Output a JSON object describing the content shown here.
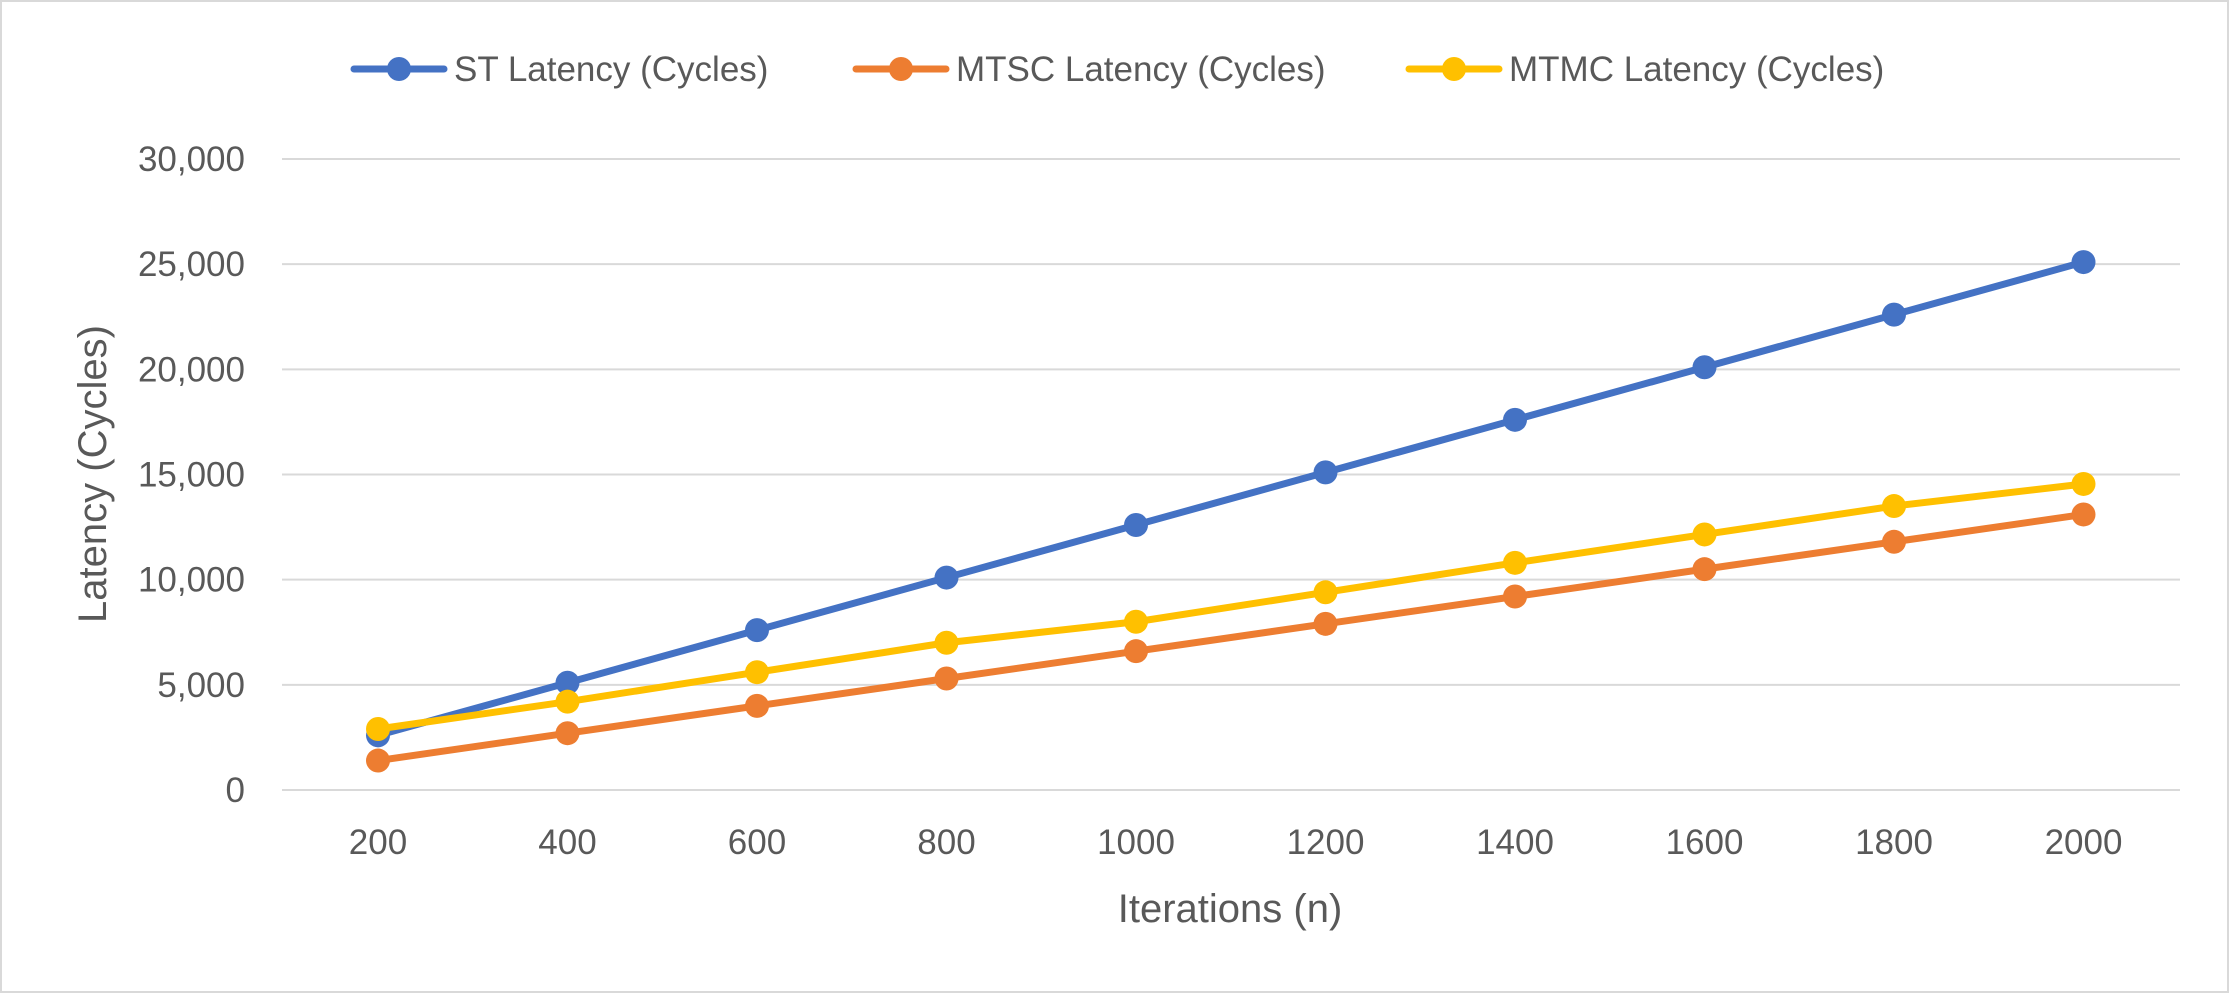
{
  "chart_data": {
    "type": "line",
    "title": "",
    "xlabel": "Iterations (n)",
    "ylabel": "Latency (Cycles)",
    "categories": [
      "200",
      "400",
      "600",
      "800",
      "1000",
      "1200",
      "1400",
      "1600",
      "1800",
      "2000"
    ],
    "ylim": [
      0,
      30000
    ],
    "yticks": [
      0,
      5000,
      10000,
      15000,
      20000,
      25000,
      30000
    ],
    "ytick_labels": [
      "0",
      "5,000",
      "10,000",
      "15,000",
      "20,000",
      "25,000",
      "30,000"
    ],
    "grid": true,
    "legend_position": "top",
    "series": [
      {
        "name": "ST Latency (Cycles)",
        "color": "#4472C4",
        "values": [
          2600,
          5100,
          7600,
          10100,
          12600,
          15100,
          17600,
          20100,
          22600,
          25100
        ]
      },
      {
        "name": "MTSC Latency (Cycles)",
        "color": "#ED7D31",
        "values": [
          1400,
          2700,
          4000,
          5300,
          6600,
          7900,
          9200,
          10500,
          11800,
          13100
        ]
      },
      {
        "name": "MTMC Latency (Cycles)",
        "color": "#FFC000",
        "values": [
          2900,
          4200,
          5600,
          7000,
          8000,
          9400,
          10800,
          12150,
          13500,
          14550
        ]
      }
    ]
  }
}
